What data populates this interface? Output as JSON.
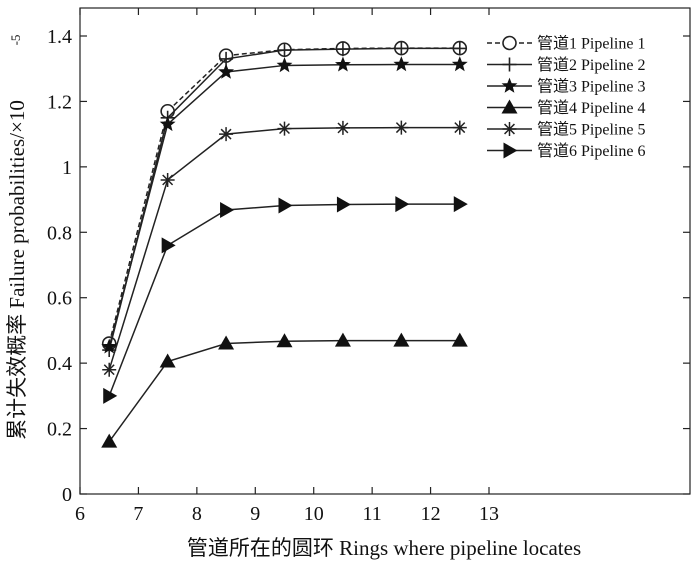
{
  "chart_data": {
    "type": "line",
    "xlabel": "管道所在的圆环 Rings where pipeline locates",
    "ylabel": "累计失效概率 Failure probabilities/×10",
    "ylabel_exponent": "-5",
    "xlim": [
      6,
      13
    ],
    "ylim": [
      0,
      1.47
    ],
    "xticks": [
      6,
      7,
      8,
      9,
      10,
      11,
      12,
      13
    ],
    "yticks": [
      0,
      0.2,
      0.4,
      0.6,
      0.8,
      1,
      1.2,
      1.4
    ],
    "xtick_labels": [
      "6",
      "7",
      "8",
      "9",
      "10",
      "11",
      "12",
      "13"
    ],
    "ytick_labels": [
      "0",
      "0.2",
      "0.4",
      "0.6",
      "0.8",
      "1",
      "1.2",
      "1.4"
    ],
    "legend_position": "top-right",
    "grid": false,
    "x": [
      6.5,
      7.5,
      8.5,
      9.5,
      10.5,
      11.5,
      12.5
    ],
    "series": [
      {
        "name": "管道1 Pipeline 1",
        "marker": "circle",
        "dash": "dashed",
        "values": [
          0.46,
          1.17,
          1.34,
          1.358,
          1.362,
          1.363,
          1.363
        ]
      },
      {
        "name": "管道2 Pipeline 2",
        "marker": "plus",
        "dash": "solid",
        "values": [
          0.44,
          1.15,
          1.33,
          1.357,
          1.36,
          1.362,
          1.362
        ]
      },
      {
        "name": "管道3 Pipeline 3",
        "marker": "star",
        "dash": "solid",
        "values": [
          0.45,
          1.13,
          1.29,
          1.31,
          1.312,
          1.313,
          1.313
        ]
      },
      {
        "name": "管道4 Pipeline 4",
        "marker": "triangle-up",
        "dash": "solid",
        "values": [
          0.16,
          0.405,
          0.46,
          0.467,
          0.469,
          0.469,
          0.469
        ]
      },
      {
        "name": "管道5 Pipeline 5",
        "marker": "asterisk",
        "dash": "solid",
        "values": [
          0.38,
          0.96,
          1.1,
          1.117,
          1.119,
          1.12,
          1.12
        ]
      },
      {
        "name": "管道6 Pipeline 6",
        "marker": "triangle-right",
        "dash": "solid",
        "values": [
          0.3,
          0.76,
          0.868,
          0.882,
          0.885,
          0.886,
          0.886
        ]
      }
    ]
  }
}
